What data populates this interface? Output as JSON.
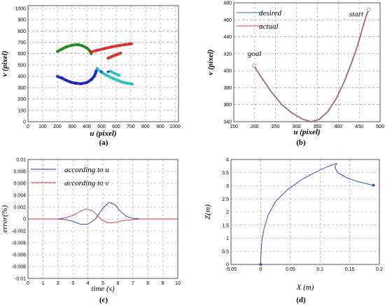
{
  "chart_data": [
    {
      "panel_label": "(a)",
      "type": "scatter",
      "xlabel": "u (pixel)",
      "ylabel": "v (pixel)",
      "xlim": [
        0,
        1024
      ],
      "ylim": [
        0,
        1024
      ],
      "xticks": [
        "0",
        "100",
        "200",
        "300",
        "400",
        "500",
        "600",
        "700",
        "800",
        "900",
        "1000"
      ],
      "yticks": [
        "0",
        "100",
        "200",
        "300",
        "400",
        "500",
        "600",
        "700",
        "800",
        "900",
        "1000"
      ],
      "grid": true,
      "series": [
        {
          "color": "#118811",
          "points": [
            [
              200,
              620
            ],
            [
              230,
              640
            ],
            [
              260,
              660
            ],
            [
              300,
              675
            ],
            [
              340,
              680
            ],
            [
              370,
              670
            ],
            [
              400,
              650
            ],
            [
              420,
              625
            ],
            [
              430,
              600
            ]
          ]
        },
        {
          "color": "#e02020",
          "points": [
            [
              430,
              615
            ],
            [
              470,
              630
            ],
            [
              520,
              645
            ],
            [
              570,
              660
            ],
            [
              620,
              672
            ],
            [
              660,
              680
            ],
            [
              690,
              685
            ],
            [
              705,
              688
            ]
          ]
        },
        {
          "color": "#e02020",
          "points": [
            [
              545,
              560
            ],
            [
              570,
              575
            ],
            [
              600,
              590
            ],
            [
              630,
              605
            ]
          ]
        },
        {
          "color": "#1515cc",
          "points": [
            [
              200,
              400
            ],
            [
              230,
              385
            ],
            [
              260,
              365
            ],
            [
              290,
              350
            ],
            [
              320,
              340
            ],
            [
              360,
              335
            ],
            [
              400,
              345
            ],
            [
              430,
              370
            ],
            [
              450,
              400
            ],
            [
              460,
              430
            ],
            [
              465,
              450
            ]
          ]
        },
        {
          "color": "#20c0c0",
          "points": [
            [
              470,
              470
            ],
            [
              495,
              440
            ],
            [
              520,
              420
            ],
            [
              550,
              400
            ],
            [
              580,
              380
            ],
            [
              610,
              365
            ],
            [
              640,
              350
            ],
            [
              670,
              340
            ],
            [
              700,
              335
            ],
            [
              710,
              332
            ]
          ]
        },
        {
          "color": "#20c0c0",
          "points": [
            [
              560,
              445
            ],
            [
              590,
              425
            ],
            [
              620,
              410
            ]
          ]
        }
      ],
      "markers": [
        [
          200,
          400
        ],
        [
          460,
          440
        ],
        [
          500,
          440
        ],
        [
          545,
          440
        ]
      ]
    },
    {
      "panel_label": "(b)",
      "type": "line",
      "xlabel": "u (pixel)",
      "ylabel": "v (pixel)",
      "xlim": [
        150,
        500
      ],
      "ylim": [
        340,
        480
      ],
      "xticks": [
        "150",
        "200",
        "250",
        "300",
        "350",
        "400",
        "450",
        "500"
      ],
      "yticks": [
        "340",
        "360",
        "380",
        "400",
        "420",
        "440",
        "460",
        "480"
      ],
      "grid": true,
      "legend": [
        "desired",
        "actual"
      ],
      "legend_position": "top-left",
      "annotations": [
        "goal",
        "start"
      ],
      "series": [
        {
          "name": "desired",
          "color": "#1f77b4",
          "points": [
            [
              198,
              406
            ],
            [
              215,
              393
            ],
            [
              240,
              375
            ],
            [
              265,
              360
            ],
            [
              290,
              350
            ],
            [
              315,
              343
            ],
            [
              335,
              340
            ],
            [
              355,
              343
            ],
            [
              375,
              352
            ],
            [
              395,
              367
            ],
            [
              415,
              388
            ],
            [
              430,
              407
            ],
            [
              445,
              428
            ],
            [
              458,
              450
            ],
            [
              467,
              465
            ],
            [
              473,
              472
            ]
          ]
        },
        {
          "name": "actual",
          "color": "#e04040",
          "points": [
            [
              198,
              406
            ],
            [
              215,
              393
            ],
            [
              240,
              375
            ],
            [
              265,
              360
            ],
            [
              290,
              350
            ],
            [
              315,
              343
            ],
            [
              335,
              340
            ],
            [
              355,
              343
            ],
            [
              375,
              352
            ],
            [
              395,
              367
            ],
            [
              415,
              388
            ],
            [
              430,
              407
            ],
            [
              445,
              428
            ],
            [
              458,
              450
            ],
            [
              467,
              465
            ],
            [
              473,
              472
            ]
          ]
        }
      ],
      "markers": [
        [
          198,
          406
        ],
        [
          473,
          472
        ]
      ]
    },
    {
      "panel_label": "(c)",
      "type": "line",
      "xlabel": "time (s)",
      "ylabel": "error(%)",
      "xlim": [
        0,
        10
      ],
      "ylim": [
        -0.01,
        0.01
      ],
      "xticks": [
        "0",
        "1",
        "2",
        "3",
        "4",
        "5",
        "6",
        "7",
        "8",
        "9",
        "10"
      ],
      "yticks": [
        "-0.01",
        "-0.008",
        "-0.006",
        "-0.004",
        "-0.002",
        "0",
        "0.002",
        "0.004",
        "0.006",
        "0.008",
        "0.01"
      ],
      "grid": true,
      "legend": [
        "according to u",
        "according to v"
      ],
      "legend_position": "top-left",
      "series": [
        {
          "name": "according to u",
          "color": "#2233dd",
          "points": [
            [
              0,
              0
            ],
            [
              2,
              0
            ],
            [
              2.5,
              -0.0001
            ],
            [
              3,
              -0.0004
            ],
            [
              3.5,
              -0.0009
            ],
            [
              4,
              -0.0009
            ],
            [
              4.5,
              0
            ],
            [
              5,
              0.0018
            ],
            [
              5.4,
              0.0028
            ],
            [
              5.8,
              0.0024
            ],
            [
              6.2,
              0.0012
            ],
            [
              6.6,
              0.0004
            ],
            [
              7,
              0.0001
            ],
            [
              7.5,
              0
            ],
            [
              10,
              0
            ]
          ]
        },
        {
          "name": "according to v",
          "color": "#dd3333",
          "points": [
            [
              0,
              0
            ],
            [
              2,
              0
            ],
            [
              2.5,
              0.0002
            ],
            [
              3,
              0.0006
            ],
            [
              3.5,
              0.0013
            ],
            [
              3.9,
              0.0017
            ],
            [
              4.3,
              0.0014
            ],
            [
              4.7,
              0.0004
            ],
            [
              5,
              -0.0003
            ],
            [
              5.4,
              -0.0007
            ],
            [
              5.8,
              -0.0006
            ],
            [
              6.3,
              -0.0003
            ],
            [
              7,
              -0.0001
            ],
            [
              7.5,
              0
            ],
            [
              10,
              0
            ]
          ]
        }
      ]
    },
    {
      "panel_label": "(d)",
      "type": "line",
      "xlabel": "X (m)",
      "ylabel": "Z(m)",
      "xlim": [
        -0.05,
        0.2
      ],
      "ylim": [
        0,
        4
      ],
      "xticks": [
        "-0.05",
        "0",
        "0.05",
        "0.1",
        "0.15",
        "0.2"
      ],
      "yticks": [
        "0",
        "0.5",
        "1",
        "1.5",
        "2",
        "2.5",
        "3",
        "3.5",
        "4"
      ],
      "grid": true,
      "series": [
        {
          "color": "#2233dd",
          "points": [
            [
              0,
              0
            ],
            [
              0.0005,
              0.4
            ],
            [
              0.002,
              0.9
            ],
            [
              0.006,
              1.4
            ],
            [
              0.013,
              1.9
            ],
            [
              0.025,
              2.4
            ],
            [
              0.045,
              2.85
            ],
            [
              0.07,
              3.25
            ],
            [
              0.1,
              3.6
            ],
            [
              0.115,
              3.75
            ],
            [
              0.128,
              3.85
            ],
            [
              0.125,
              3.7
            ],
            [
              0.13,
              3.5
            ],
            [
              0.145,
              3.3
            ],
            [
              0.165,
              3.15
            ],
            [
              0.19,
              3.02
            ]
          ]
        }
      ],
      "markers": [
        [
          0,
          0
        ],
        [
          0.19,
          3.02
        ]
      ]
    }
  ]
}
